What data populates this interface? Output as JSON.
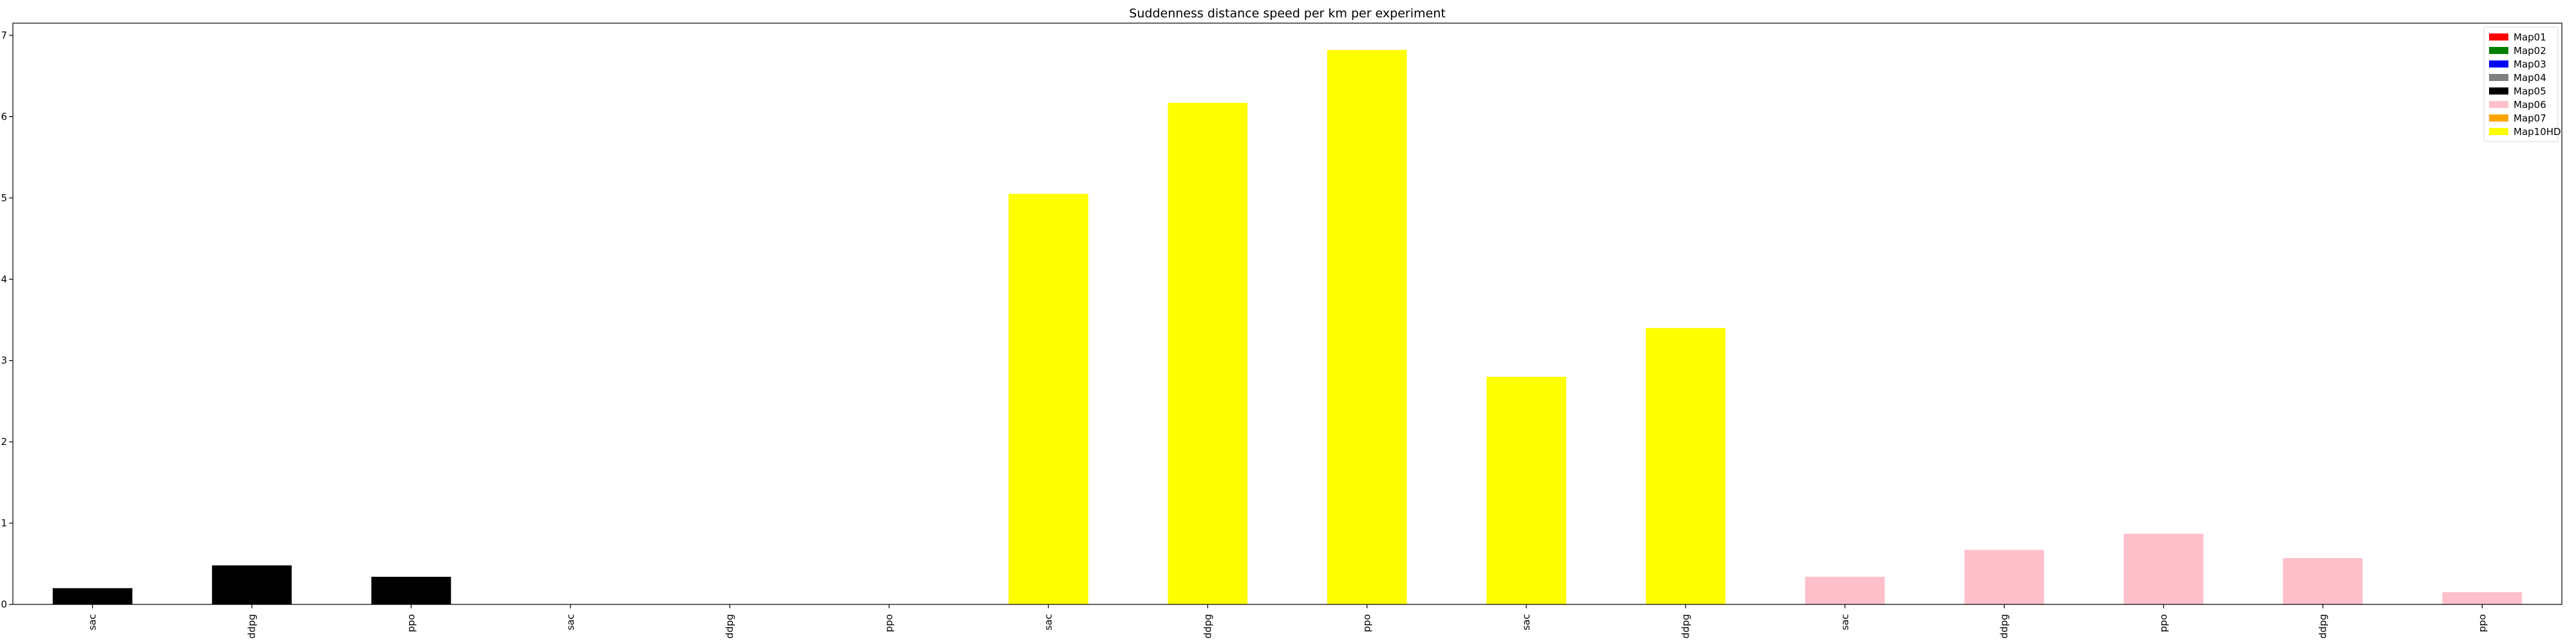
{
  "chart_data": {
    "type": "bar",
    "title": "Suddenness distance speed per km per experiment",
    "xlabel": "",
    "ylabel": "",
    "ylim": [
      0,
      7.15
    ],
    "yticks": [
      0,
      1,
      2,
      3,
      4,
      5,
      6,
      7
    ],
    "grid": false,
    "legend_position": "top-right",
    "legend": [
      {
        "name": "Map01",
        "color": "#ff0000"
      },
      {
        "name": "Map02",
        "color": "#008000"
      },
      {
        "name": "Map03",
        "color": "#0000ff"
      },
      {
        "name": "Map04",
        "color": "#808080"
      },
      {
        "name": "Map05",
        "color": "#000000"
      },
      {
        "name": "Map06",
        "color": "#ffc0cb"
      },
      {
        "name": "Map07",
        "color": "#ffa500"
      },
      {
        "name": "Map10HD",
        "color": "#ffff00"
      }
    ],
    "categories": [
      "sac",
      "ddpg",
      "ppo",
      "sac",
      "ddpg",
      "ppo",
      "sac",
      "ddpg",
      "ppo",
      "sac",
      "ddpg",
      "sac",
      "ddpg",
      "ppo",
      "ddpg",
      "ppo"
    ],
    "values": [
      0.2,
      0.48,
      0.34,
      0,
      0,
      0,
      5.05,
      6.17,
      6.82,
      2.8,
      3.4,
      0.34,
      0.67,
      0.87,
      0.57,
      0.15
    ],
    "bar_colors": [
      "#000000",
      "#000000",
      "#000000",
      "#000000",
      "#000000",
      "#000000",
      "#ffff00",
      "#ffff00",
      "#ffff00",
      "#ffff00",
      "#ffff00",
      "#ffc0cb",
      "#ffc0cb",
      "#ffc0cb",
      "#ffc0cb",
      "#ffc0cb"
    ]
  }
}
